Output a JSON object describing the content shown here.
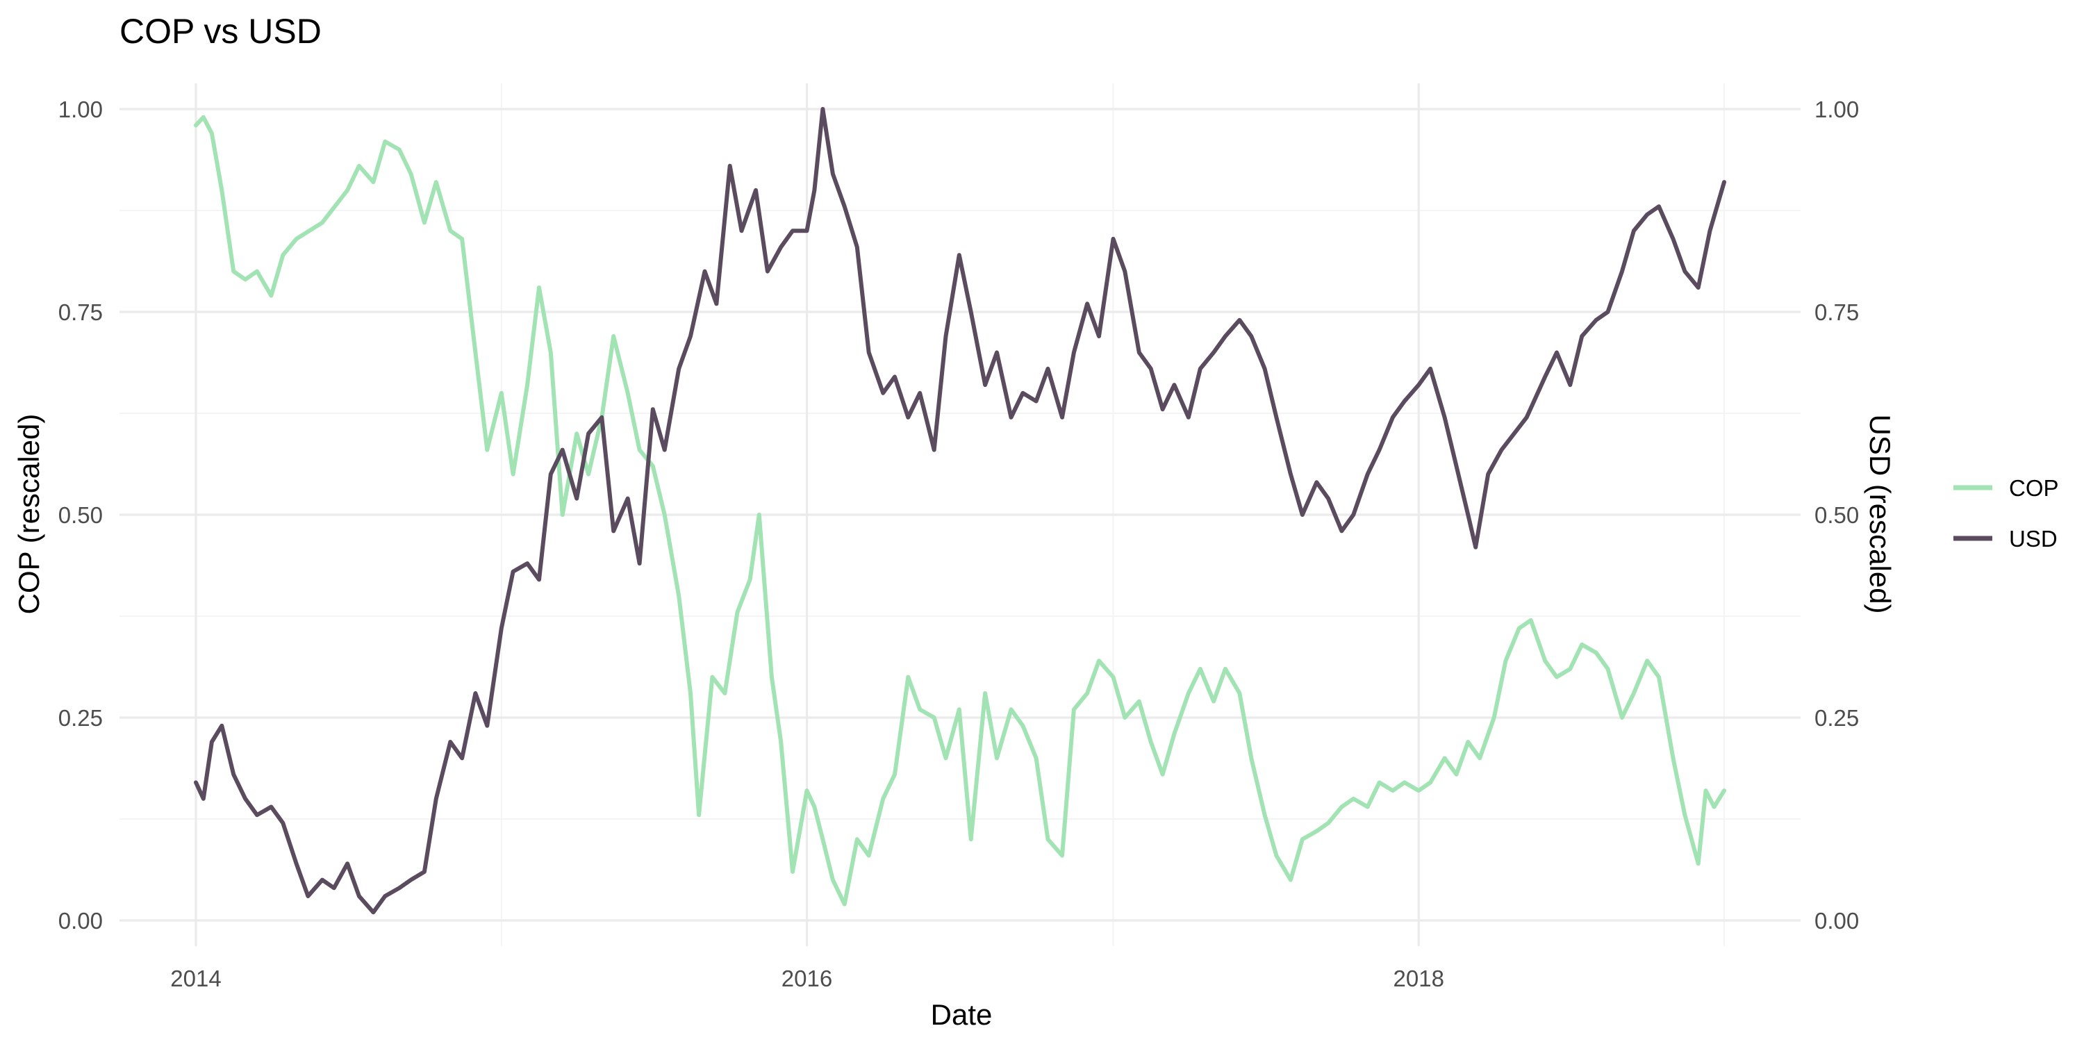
{
  "chart_data": {
    "type": "line",
    "title": "COP vs USD",
    "xlabel": "Date",
    "ylabel": "COP (rescaled)",
    "ylabel_right": "USD (rescaled)",
    "x_axis_type": "date",
    "xlim": [
      "2014-01-01",
      "2019-01-01"
    ],
    "x_ticks": [
      "2014",
      "2016",
      "2018"
    ],
    "ylim": [
      0,
      1
    ],
    "y_ticks": [
      "0.00",
      "0.25",
      "0.50",
      "0.75",
      "1.00"
    ],
    "grid": true,
    "legend_position": "right",
    "series": [
      {
        "name": "COP",
        "color": "#a1e3b3",
        "points": [
          [
            "2014-01-01",
            0.98
          ],
          [
            "2014-01-10",
            0.99
          ],
          [
            "2014-01-20",
            0.97
          ],
          [
            "2014-02-01",
            0.9
          ],
          [
            "2014-02-15",
            0.8
          ],
          [
            "2014-03-01",
            0.79
          ],
          [
            "2014-03-15",
            0.8
          ],
          [
            "2014-04-01",
            0.77
          ],
          [
            "2014-04-15",
            0.82
          ],
          [
            "2014-05-01",
            0.84
          ],
          [
            "2014-06-01",
            0.86
          ],
          [
            "2014-07-01",
            0.9
          ],
          [
            "2014-07-15",
            0.93
          ],
          [
            "2014-08-01",
            0.91
          ],
          [
            "2014-08-15",
            0.96
          ],
          [
            "2014-09-01",
            0.95
          ],
          [
            "2014-09-15",
            0.92
          ],
          [
            "2014-10-01",
            0.86
          ],
          [
            "2014-10-15",
            0.91
          ],
          [
            "2014-11-01",
            0.85
          ],
          [
            "2014-11-15",
            0.84
          ],
          [
            "2014-12-01",
            0.7
          ],
          [
            "2014-12-15",
            0.58
          ],
          [
            "2015-01-01",
            0.65
          ],
          [
            "2015-01-15",
            0.55
          ],
          [
            "2015-02-01",
            0.66
          ],
          [
            "2015-02-15",
            0.78
          ],
          [
            "2015-03-01",
            0.7
          ],
          [
            "2015-03-15",
            0.5
          ],
          [
            "2015-04-01",
            0.6
          ],
          [
            "2015-04-15",
            0.55
          ],
          [
            "2015-05-01",
            0.62
          ],
          [
            "2015-05-15",
            0.72
          ],
          [
            "2015-06-01",
            0.65
          ],
          [
            "2015-06-15",
            0.58
          ],
          [
            "2015-07-01",
            0.56
          ],
          [
            "2015-07-15",
            0.5
          ],
          [
            "2015-08-01",
            0.4
          ],
          [
            "2015-08-15",
            0.28
          ],
          [
            "2015-08-25",
            0.13
          ],
          [
            "2015-09-10",
            0.3
          ],
          [
            "2015-09-25",
            0.28
          ],
          [
            "2015-10-10",
            0.38
          ],
          [
            "2015-10-25",
            0.42
          ],
          [
            "2015-11-05",
            0.5
          ],
          [
            "2015-11-20",
            0.3
          ],
          [
            "2015-12-01",
            0.22
          ],
          [
            "2015-12-15",
            0.06
          ],
          [
            "2016-01-01",
            0.16
          ],
          [
            "2016-01-10",
            0.14
          ],
          [
            "2016-01-20",
            0.1
          ],
          [
            "2016-02-01",
            0.05
          ],
          [
            "2016-02-15",
            0.02
          ],
          [
            "2016-03-01",
            0.1
          ],
          [
            "2016-03-15",
            0.08
          ],
          [
            "2016-04-01",
            0.15
          ],
          [
            "2016-04-15",
            0.18
          ],
          [
            "2016-05-01",
            0.3
          ],
          [
            "2016-05-15",
            0.26
          ],
          [
            "2016-06-01",
            0.25
          ],
          [
            "2016-06-15",
            0.2
          ],
          [
            "2016-07-01",
            0.26
          ],
          [
            "2016-07-15",
            0.1
          ],
          [
            "2016-08-01",
            0.28
          ],
          [
            "2016-08-15",
            0.2
          ],
          [
            "2016-09-01",
            0.26
          ],
          [
            "2016-09-15",
            0.24
          ],
          [
            "2016-10-01",
            0.2
          ],
          [
            "2016-10-15",
            0.1
          ],
          [
            "2016-11-01",
            0.08
          ],
          [
            "2016-11-15",
            0.26
          ],
          [
            "2016-12-01",
            0.28
          ],
          [
            "2016-12-15",
            0.32
          ],
          [
            "2017-01-01",
            0.3
          ],
          [
            "2017-01-15",
            0.25
          ],
          [
            "2017-02-01",
            0.27
          ],
          [
            "2017-02-15",
            0.22
          ],
          [
            "2017-03-01",
            0.18
          ],
          [
            "2017-03-15",
            0.23
          ],
          [
            "2017-04-01",
            0.28
          ],
          [
            "2017-04-15",
            0.31
          ],
          [
            "2017-05-01",
            0.27
          ],
          [
            "2017-05-15",
            0.31
          ],
          [
            "2017-06-01",
            0.28
          ],
          [
            "2017-06-15",
            0.2
          ],
          [
            "2017-07-01",
            0.13
          ],
          [
            "2017-07-15",
            0.08
          ],
          [
            "2017-08-01",
            0.05
          ],
          [
            "2017-08-15",
            0.1
          ],
          [
            "2017-09-01",
            0.11
          ],
          [
            "2017-09-15",
            0.12
          ],
          [
            "2017-10-01",
            0.14
          ],
          [
            "2017-10-15",
            0.15
          ],
          [
            "2017-11-01",
            0.14
          ],
          [
            "2017-11-15",
            0.17
          ],
          [
            "2017-12-01",
            0.16
          ],
          [
            "2017-12-15",
            0.17
          ],
          [
            "2018-01-01",
            0.16
          ],
          [
            "2018-01-15",
            0.17
          ],
          [
            "2018-02-01",
            0.2
          ],
          [
            "2018-02-15",
            0.18
          ],
          [
            "2018-03-01",
            0.22
          ],
          [
            "2018-03-15",
            0.2
          ],
          [
            "2018-04-01",
            0.25
          ],
          [
            "2018-04-15",
            0.32
          ],
          [
            "2018-05-01",
            0.36
          ],
          [
            "2018-05-15",
            0.37
          ],
          [
            "2018-06-01",
            0.32
          ],
          [
            "2018-06-15",
            0.3
          ],
          [
            "2018-07-01",
            0.31
          ],
          [
            "2018-07-15",
            0.34
          ],
          [
            "2018-08-01",
            0.33
          ],
          [
            "2018-08-15",
            0.31
          ],
          [
            "2018-09-01",
            0.25
          ],
          [
            "2018-09-15",
            0.28
          ],
          [
            "2018-10-01",
            0.32
          ],
          [
            "2018-10-15",
            0.3
          ],
          [
            "2018-11-01",
            0.2
          ],
          [
            "2018-11-15",
            0.13
          ],
          [
            "2018-12-01",
            0.07
          ],
          [
            "2018-12-10",
            0.16
          ],
          [
            "2018-12-20",
            0.14
          ],
          [
            "2019-01-01",
            0.16
          ]
        ]
      },
      {
        "name": "USD",
        "color": "#5a4b5e",
        "points": [
          [
            "2014-01-01",
            0.17
          ],
          [
            "2014-01-10",
            0.15
          ],
          [
            "2014-01-20",
            0.22
          ],
          [
            "2014-02-01",
            0.24
          ],
          [
            "2014-02-15",
            0.18
          ],
          [
            "2014-03-01",
            0.15
          ],
          [
            "2014-03-15",
            0.13
          ],
          [
            "2014-04-01",
            0.14
          ],
          [
            "2014-04-15",
            0.12
          ],
          [
            "2014-05-01",
            0.07
          ],
          [
            "2014-05-15",
            0.03
          ],
          [
            "2014-06-01",
            0.05
          ],
          [
            "2014-06-15",
            0.04
          ],
          [
            "2014-07-01",
            0.07
          ],
          [
            "2014-07-15",
            0.03
          ],
          [
            "2014-08-01",
            0.01
          ],
          [
            "2014-08-15",
            0.03
          ],
          [
            "2014-09-01",
            0.04
          ],
          [
            "2014-09-15",
            0.05
          ],
          [
            "2014-10-01",
            0.06
          ],
          [
            "2014-10-15",
            0.15
          ],
          [
            "2014-11-01",
            0.22
          ],
          [
            "2014-11-15",
            0.2
          ],
          [
            "2014-12-01",
            0.28
          ],
          [
            "2014-12-15",
            0.24
          ],
          [
            "2015-01-01",
            0.36
          ],
          [
            "2015-01-15",
            0.43
          ],
          [
            "2015-02-01",
            0.44
          ],
          [
            "2015-02-15",
            0.42
          ],
          [
            "2015-03-01",
            0.55
          ],
          [
            "2015-03-15",
            0.58
          ],
          [
            "2015-04-01",
            0.52
          ],
          [
            "2015-04-15",
            0.6
          ],
          [
            "2015-05-01",
            0.62
          ],
          [
            "2015-05-15",
            0.48
          ],
          [
            "2015-06-01",
            0.52
          ],
          [
            "2015-06-15",
            0.44
          ],
          [
            "2015-07-01",
            0.63
          ],
          [
            "2015-07-15",
            0.58
          ],
          [
            "2015-08-01",
            0.68
          ],
          [
            "2015-08-15",
            0.72
          ],
          [
            "2015-09-01",
            0.8
          ],
          [
            "2015-09-15",
            0.76
          ],
          [
            "2015-10-01",
            0.93
          ],
          [
            "2015-10-15",
            0.85
          ],
          [
            "2015-11-01",
            0.9
          ],
          [
            "2015-11-15",
            0.8
          ],
          [
            "2015-12-01",
            0.83
          ],
          [
            "2015-12-15",
            0.85
          ],
          [
            "2016-01-01",
            0.85
          ],
          [
            "2016-01-10",
            0.9
          ],
          [
            "2016-01-20",
            1.0
          ],
          [
            "2016-02-01",
            0.92
          ],
          [
            "2016-02-15",
            0.88
          ],
          [
            "2016-03-01",
            0.83
          ],
          [
            "2016-03-15",
            0.7
          ],
          [
            "2016-04-01",
            0.65
          ],
          [
            "2016-04-15",
            0.67
          ],
          [
            "2016-05-01",
            0.62
          ],
          [
            "2016-05-15",
            0.65
          ],
          [
            "2016-06-01",
            0.58
          ],
          [
            "2016-06-15",
            0.72
          ],
          [
            "2016-07-01",
            0.82
          ],
          [
            "2016-07-15",
            0.75
          ],
          [
            "2016-08-01",
            0.66
          ],
          [
            "2016-08-15",
            0.7
          ],
          [
            "2016-09-01",
            0.62
          ],
          [
            "2016-09-15",
            0.65
          ],
          [
            "2016-10-01",
            0.64
          ],
          [
            "2016-10-15",
            0.68
          ],
          [
            "2016-11-01",
            0.62
          ],
          [
            "2016-11-15",
            0.7
          ],
          [
            "2016-12-01",
            0.76
          ],
          [
            "2016-12-15",
            0.72
          ],
          [
            "2017-01-01",
            0.84
          ],
          [
            "2017-01-15",
            0.8
          ],
          [
            "2017-02-01",
            0.7
          ],
          [
            "2017-02-15",
            0.68
          ],
          [
            "2017-03-01",
            0.63
          ],
          [
            "2017-03-15",
            0.66
          ],
          [
            "2017-04-01",
            0.62
          ],
          [
            "2017-04-15",
            0.68
          ],
          [
            "2017-05-01",
            0.7
          ],
          [
            "2017-05-15",
            0.72
          ],
          [
            "2017-06-01",
            0.74
          ],
          [
            "2017-06-15",
            0.72
          ],
          [
            "2017-07-01",
            0.68
          ],
          [
            "2017-07-15",
            0.62
          ],
          [
            "2017-08-01",
            0.55
          ],
          [
            "2017-08-15",
            0.5
          ],
          [
            "2017-09-01",
            0.54
          ],
          [
            "2017-09-15",
            0.52
          ],
          [
            "2017-10-01",
            0.48
          ],
          [
            "2017-10-15",
            0.5
          ],
          [
            "2017-11-01",
            0.55
          ],
          [
            "2017-11-15",
            0.58
          ],
          [
            "2017-12-01",
            0.62
          ],
          [
            "2017-12-15",
            0.64
          ],
          [
            "2018-01-01",
            0.66
          ],
          [
            "2018-01-15",
            0.68
          ],
          [
            "2018-02-01",
            0.62
          ],
          [
            "2018-02-15",
            0.56
          ],
          [
            "2018-03-01",
            0.5
          ],
          [
            "2018-03-10",
            0.46
          ],
          [
            "2018-03-25",
            0.55
          ],
          [
            "2018-04-10",
            0.58
          ],
          [
            "2018-04-25",
            0.6
          ],
          [
            "2018-05-10",
            0.62
          ],
          [
            "2018-06-01",
            0.67
          ],
          [
            "2018-06-15",
            0.7
          ],
          [
            "2018-07-01",
            0.66
          ],
          [
            "2018-07-15",
            0.72
          ],
          [
            "2018-08-01",
            0.74
          ],
          [
            "2018-08-15",
            0.75
          ],
          [
            "2018-09-01",
            0.8
          ],
          [
            "2018-09-15",
            0.85
          ],
          [
            "2018-10-01",
            0.87
          ],
          [
            "2018-10-15",
            0.88
          ],
          [
            "2018-11-01",
            0.84
          ],
          [
            "2018-11-15",
            0.8
          ],
          [
            "2018-12-01",
            0.78
          ],
          [
            "2018-12-15",
            0.85
          ],
          [
            "2019-01-01",
            0.91
          ]
        ]
      }
    ]
  }
}
